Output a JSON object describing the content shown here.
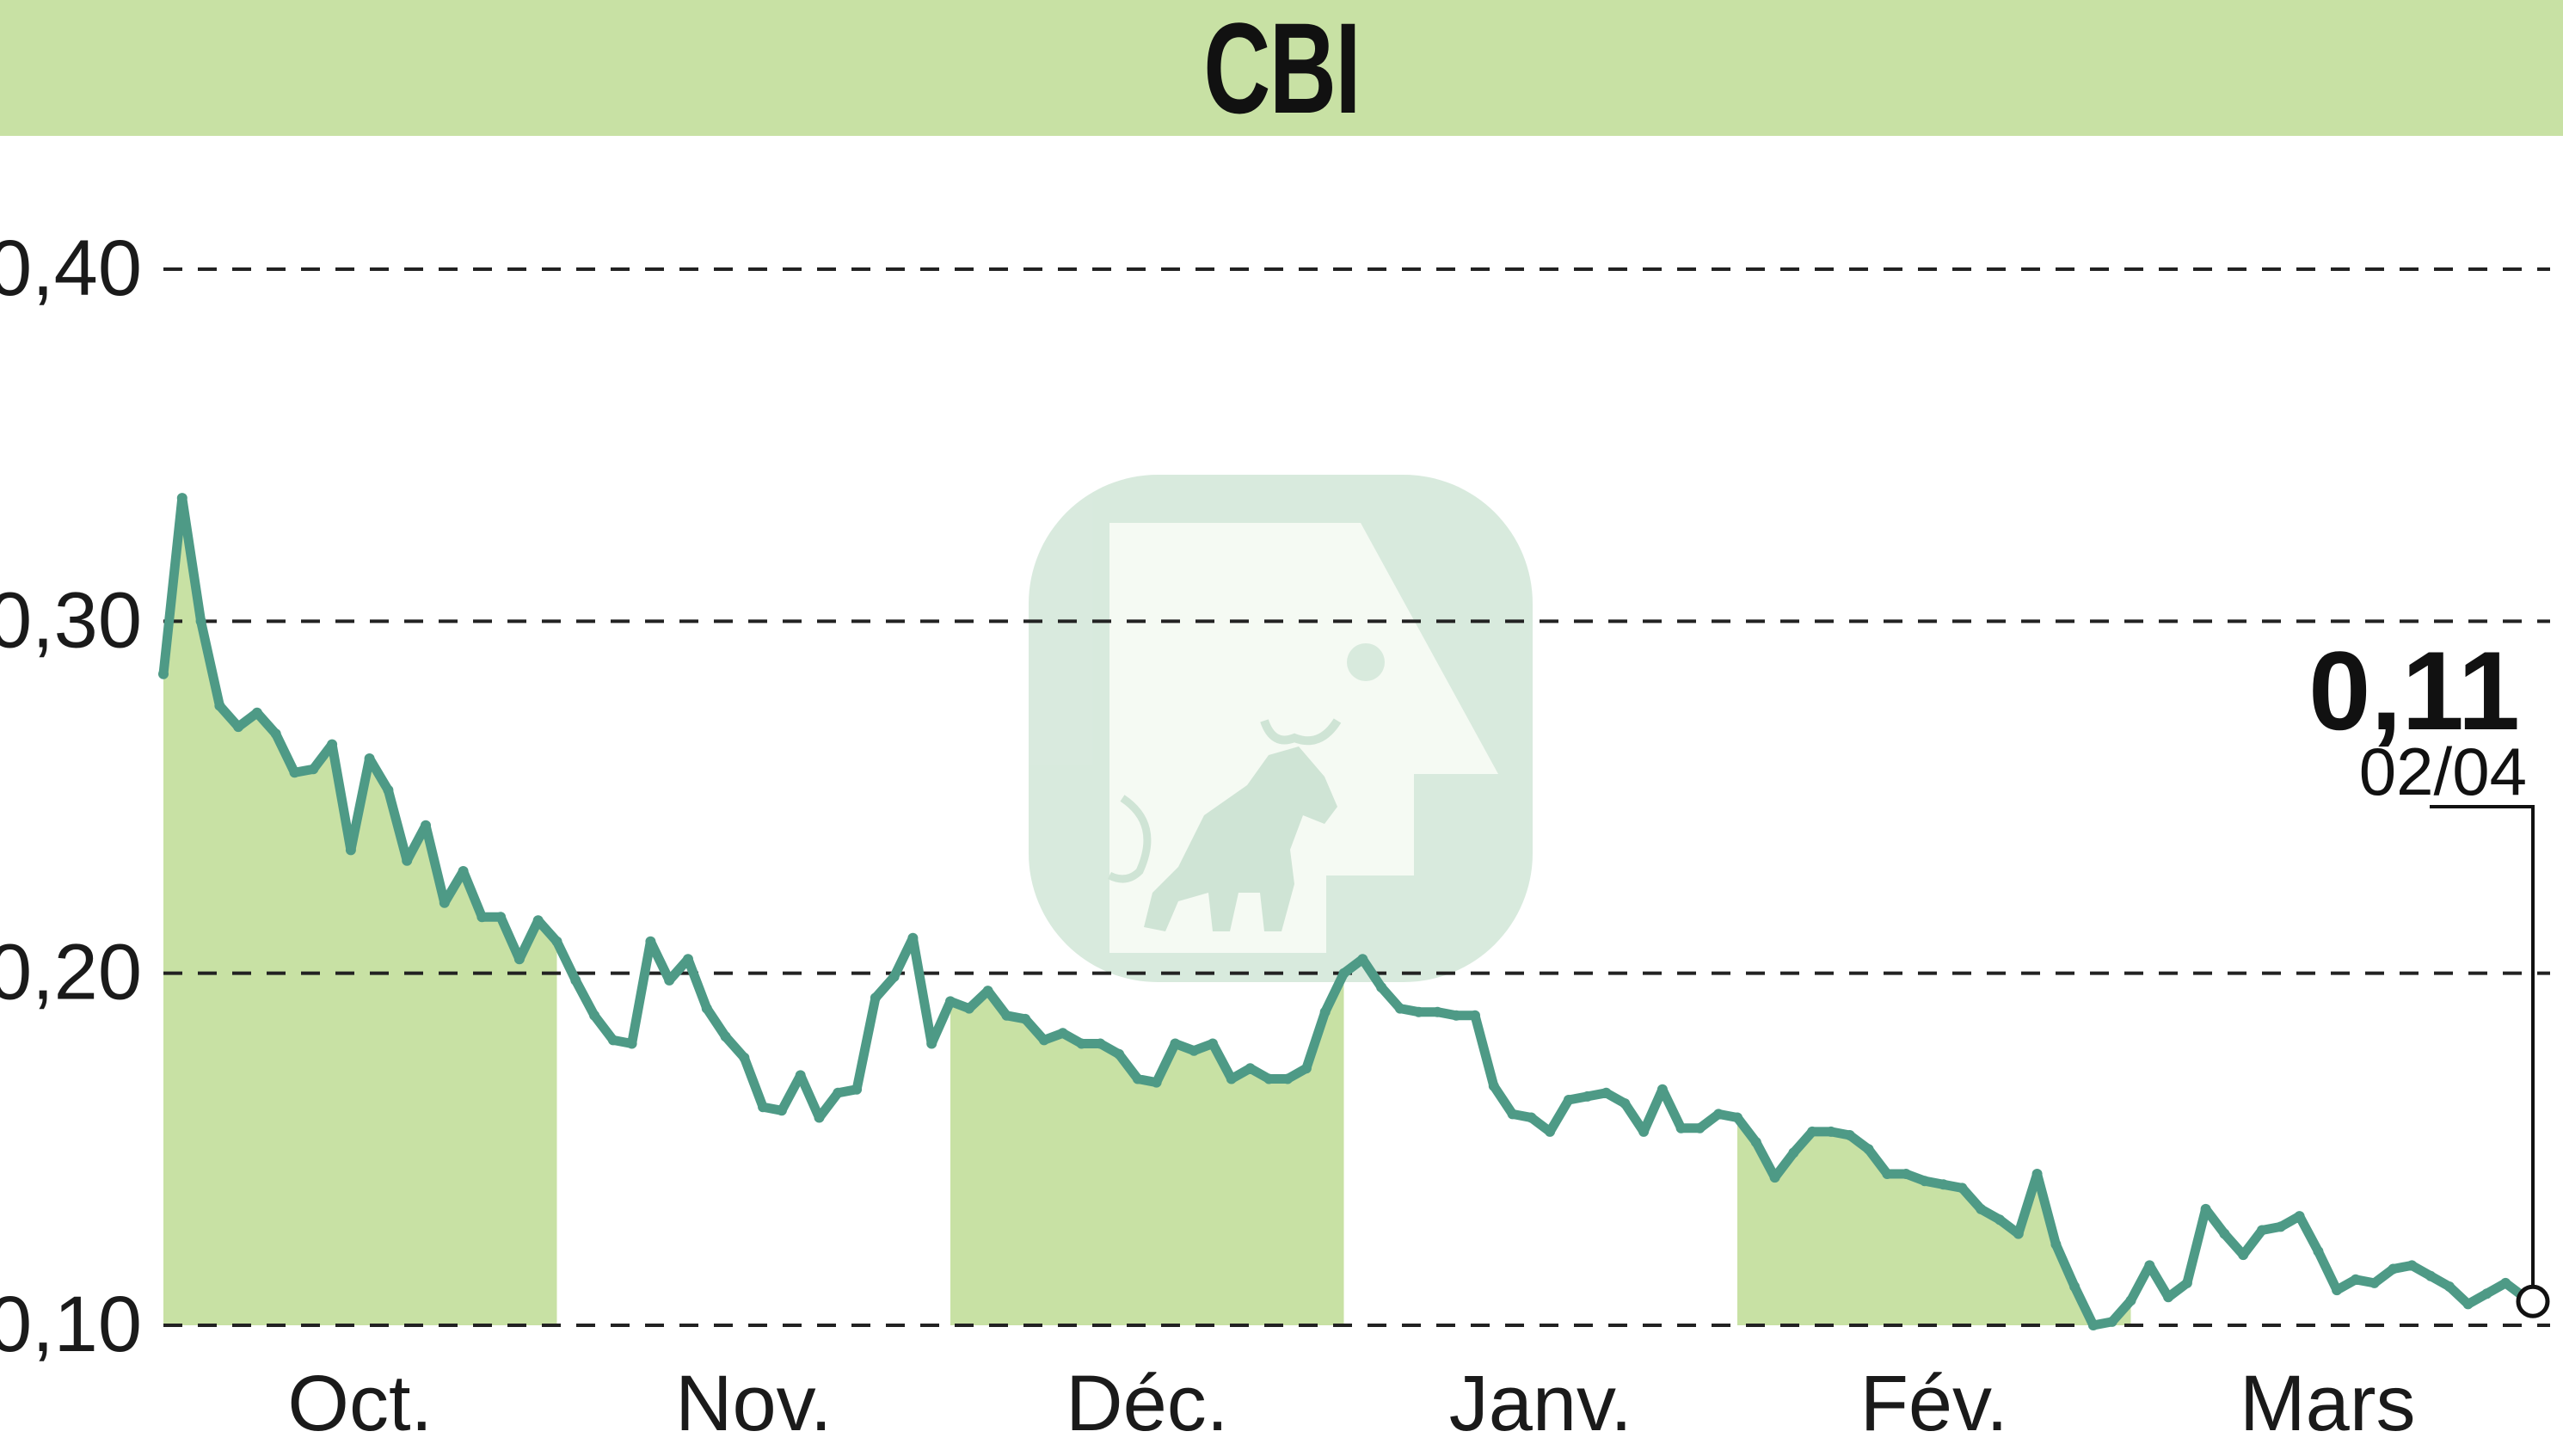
{
  "title": "CBI",
  "colors": {
    "band": "#c8e1a4",
    "line": "#4e9a86",
    "grid": "#222222"
  },
  "chart_data": {
    "type": "line",
    "ylim": [
      0.1,
      0.4
    ],
    "yticks": [
      0.1,
      0.2,
      0.3,
      0.4
    ],
    "ytick_labels": [
      "0,10",
      "0,20",
      "0,30",
      "0,40"
    ],
    "months": [
      "Oct.",
      "Nov.",
      "Déc.",
      "Janv.",
      "Fév.",
      "Mars"
    ],
    "shaded_months": [
      "Oct.",
      "Déc.",
      "Fév."
    ],
    "grid": "dashed-horizontal",
    "last_value_label": "0,11",
    "last_date_label": "02/04",
    "series": [
      {
        "values": [
          0.285,
          0.335,
          0.3,
          0.276,
          0.27,
          0.274,
          0.268,
          0.257,
          0.258,
          0.265,
          0.235,
          0.261,
          0.252,
          0.232,
          0.242,
          0.22,
          0.229,
          0.216,
          0.216,
          0.204,
          0.215,
          0.209,
          0.198,
          0.188,
          0.181,
          0.18,
          0.209,
          0.198,
          0.204,
          0.19,
          0.182,
          0.176,
          0.162,
          0.161,
          0.171,
          0.159,
          0.166,
          0.167,
          0.193,
          0.199,
          0.21,
          0.18,
          0.192,
          0.19,
          0.195,
          0.188,
          0.187,
          0.181,
          0.183,
          0.18,
          0.18,
          0.177,
          0.17,
          0.169,
          0.18,
          0.178,
          0.18,
          0.17,
          0.173,
          0.17,
          0.17,
          0.173,
          0.189,
          0.2,
          0.204,
          0.196,
          0.19,
          0.189,
          0.189,
          0.188,
          0.188,
          0.168,
          0.16,
          0.159,
          0.155,
          0.164,
          0.165,
          0.166,
          0.163,
          0.155,
          0.167,
          0.156,
          0.156,
          0.16,
          0.159,
          0.152,
          0.142,
          0.149,
          0.155,
          0.155,
          0.154,
          0.15,
          0.143,
          0.143,
          0.141,
          0.14,
          0.139,
          0.133,
          0.13,
          0.126,
          0.143,
          0.123,
          0.111,
          0.1,
          0.101,
          0.107,
          0.117,
          0.108,
          0.112,
          0.133,
          0.126,
          0.12,
          0.127,
          0.128,
          0.131,
          0.121,
          0.11,
          0.113,
          0.112,
          0.116,
          0.117,
          0.114,
          0.111,
          0.106,
          0.109,
          0.112,
          0.108
        ]
      }
    ]
  }
}
